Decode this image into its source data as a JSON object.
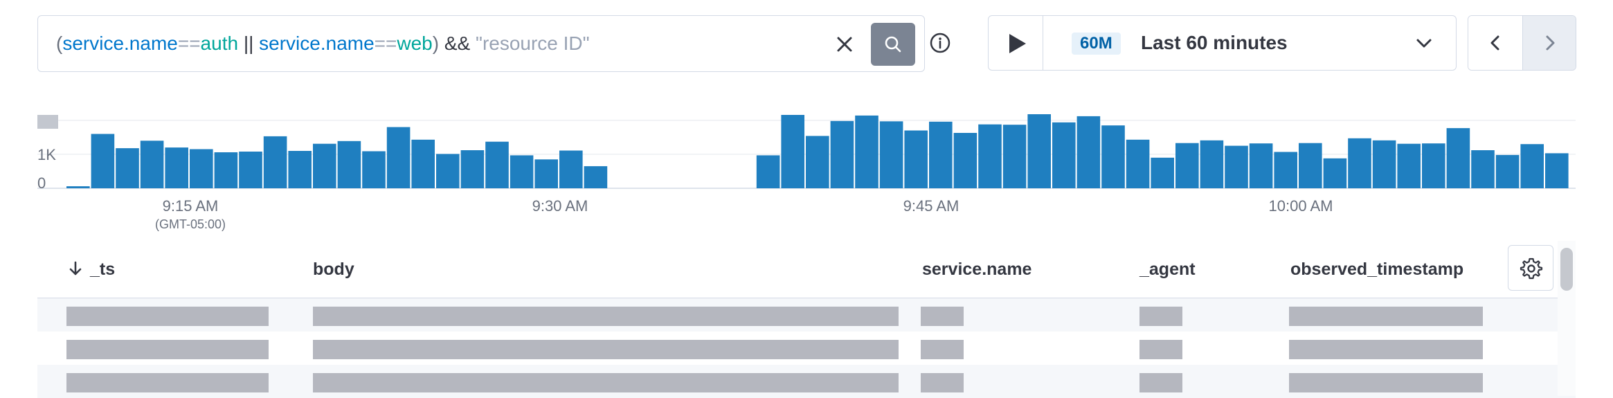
{
  "search": {
    "query_parts": [
      {
        "text": "(",
        "kind": "paren"
      },
      {
        "text": "service.name",
        "kind": "field"
      },
      {
        "text": "==",
        "kind": "op"
      },
      {
        "text": "auth",
        "kind": "val"
      },
      {
        "text": " || ",
        "kind": "bool"
      },
      {
        "text": "service.name",
        "kind": "field"
      },
      {
        "text": "==",
        "kind": "op"
      },
      {
        "text": "web",
        "kind": "val"
      },
      {
        "text": ")",
        "kind": "paren"
      },
      {
        "text": " && ",
        "kind": "bool"
      },
      {
        "text": "\"resource ID\"",
        "kind": "str"
      }
    ],
    "clear_icon": "close-icon",
    "submit_icon": "search-icon",
    "info_icon": "info-icon"
  },
  "timepicker": {
    "play_icon": "play-icon",
    "badge": "60M",
    "label": "Last 60 minutes",
    "dropdown_icon": "chevron-down-icon",
    "prev_icon": "chevron-left-icon",
    "next_icon": "chevron-right-icon"
  },
  "chart_data": {
    "type": "bar",
    "y_ticks": [
      "0",
      "1K"
    ],
    "ylim": [
      0,
      2200
    ],
    "x_ticks": [
      {
        "label": "9:15 AM",
        "sub": "(GMT-05:00)"
      },
      {
        "label": "9:30 AM",
        "sub": ""
      },
      {
        "label": "9:45 AM",
        "sub": ""
      },
      {
        "label": "10:00 AM",
        "sub": ""
      }
    ],
    "values": [
      60,
      1600,
      1180,
      1400,
      1200,
      1150,
      1060,
      1080,
      1530,
      1100,
      1310,
      1390,
      1090,
      1800,
      1430,
      1010,
      1120,
      1370,
      970,
      850,
      1110,
      650,
      0,
      0,
      0,
      0,
      0,
      0,
      970,
      2160,
      1540,
      1980,
      2140,
      1970,
      1700,
      1960,
      1630,
      1880,
      1870,
      2180,
      1940,
      2120,
      1850,
      1430,
      900,
      1330,
      1410,
      1250,
      1320,
      1070,
      1330,
      880,
      1470,
      1410,
      1310,
      1320,
      1770,
      1120,
      980,
      1300,
      1030
    ],
    "values_note_skip": true,
    "bar_color": "#1f7fc0",
    "grid": true
  },
  "table": {
    "columns": [
      {
        "label": "_ts",
        "sortable": true
      },
      {
        "label": "body"
      },
      {
        "label": "service.name"
      },
      {
        "label": "_agent"
      },
      {
        "label": "observed_timestamp"
      }
    ],
    "settings_icon": "gear-icon",
    "sort_icon": "arrow-down-icon",
    "rows": 3
  }
}
